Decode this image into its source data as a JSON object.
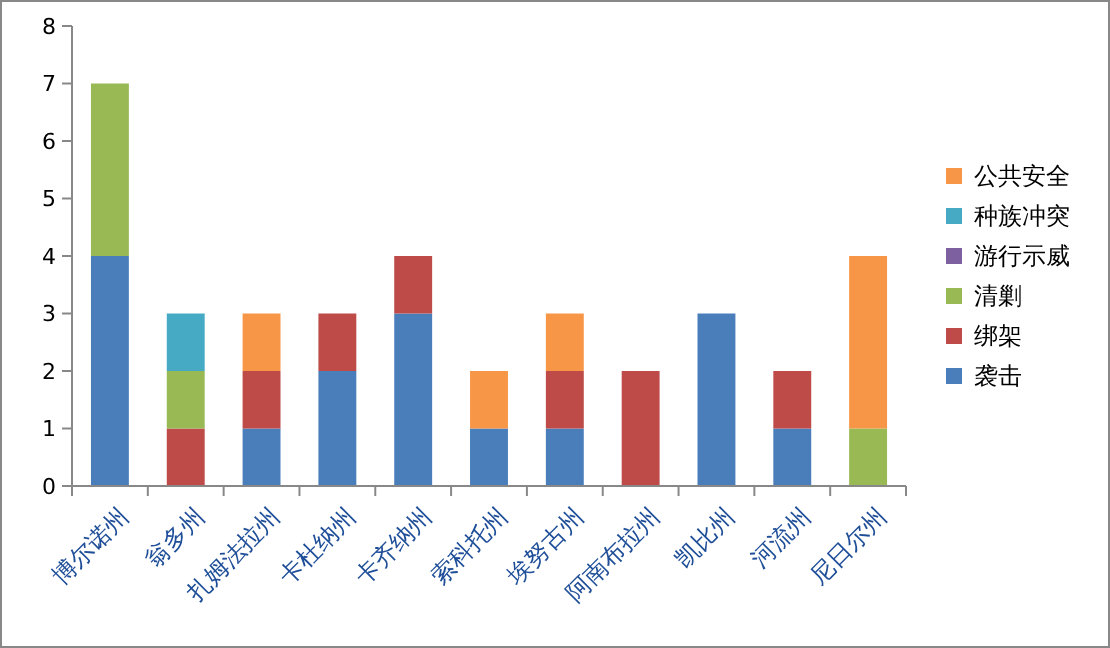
{
  "chart_data": {
    "type": "bar",
    "stacked": true,
    "categories": [
      "博尔诺州",
      "翁多州",
      "扎姆法拉州",
      "卡杜纳州",
      "卡齐纳州",
      "索科托州",
      "埃努古州",
      "阿南布拉州",
      "凯比州",
      "河流州",
      "尼日尔州"
    ],
    "series": [
      {
        "name": "袭击",
        "color": "#4a7ebb",
        "values": [
          4,
          0,
          1,
          2,
          3,
          1,
          1,
          0,
          3,
          1,
          0
        ]
      },
      {
        "name": "绑架",
        "color": "#be4b48",
        "values": [
          0,
          1,
          1,
          1,
          1,
          0,
          1,
          2,
          0,
          1,
          0
        ]
      },
      {
        "name": "清剿",
        "color": "#98b954",
        "values": [
          3,
          1,
          0,
          0,
          0,
          0,
          0,
          0,
          0,
          0,
          1
        ]
      },
      {
        "name": "游行示威",
        "color": "#7d60a0",
        "values": [
          0,
          0,
          0,
          0,
          0,
          0,
          0,
          0,
          0,
          0,
          0
        ]
      },
      {
        "name": "种族冲突",
        "color": "#46aac5",
        "values": [
          0,
          1,
          0,
          0,
          0,
          0,
          0,
          0,
          0,
          0,
          0
        ]
      },
      {
        "name": "公共安全",
        "color": "#f79646",
        "values": [
          0,
          0,
          1,
          0,
          0,
          1,
          1,
          0,
          0,
          0,
          3
        ]
      }
    ],
    "ylim": [
      0,
      8
    ],
    "yticks": [
      0,
      1,
      2,
      3,
      4,
      5,
      6,
      7,
      8
    ],
    "grid": false,
    "legend": "right"
  }
}
